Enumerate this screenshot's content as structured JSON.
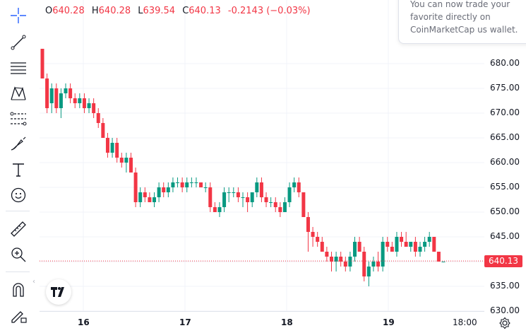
{
  "ohlc": {
    "open_label": "O",
    "open": "640.28",
    "high_label": "H",
    "high": "640.28",
    "low_label": "L",
    "low": "639.54",
    "close_label": "C",
    "close": "640.13",
    "change": "-0.2143 (−0.03%)"
  },
  "toast": {
    "text": "You can now trade your favorite directly on CoinMarketCap us wallet."
  },
  "price_axis": {
    "ticks": [
      "680.00",
      "675.00",
      "670.00",
      "665.00",
      "660.00",
      "655.00",
      "650.00",
      "645.00",
      "640.00",
      "635.00",
      "630.00"
    ],
    "last_price": "640.13"
  },
  "time_axis": {
    "ticks": [
      "16",
      "17",
      "18",
      "19",
      "18:00"
    ]
  },
  "toolbar": {
    "tools": [
      "crosshair-icon",
      "trend-line-icon",
      "horizontal-lines-icon",
      "pattern-icon",
      "fib-icon",
      "brush-icon",
      "text-tool-icon",
      "emoji-icon",
      "ruler-icon",
      "zoom-icon",
      "magnet-icon",
      "lock-pencil-icon"
    ]
  },
  "colors": {
    "up": "#089981",
    "down": "#f23645",
    "grid": "#f0f3fa"
  },
  "chart_data": {
    "type": "candlestick",
    "y_range": [
      630,
      685
    ],
    "last_price": 640.13,
    "candles": [
      [
        683,
        683,
        677,
        677
      ],
      [
        677,
        678,
        670,
        671
      ],
      [
        672,
        676,
        670,
        675
      ],
      [
        675,
        676,
        670,
        671
      ],
      [
        671,
        675,
        669,
        674
      ],
      [
        674,
        676,
        673,
        675
      ],
      [
        675,
        676,
        672,
        673
      ],
      [
        673,
        674,
        671,
        672
      ],
      [
        672,
        674,
        671,
        673
      ],
      [
        673,
        674,
        670,
        671
      ],
      [
        671,
        673,
        670,
        672
      ],
      [
        672,
        673,
        669,
        670
      ],
      [
        670,
        671,
        667,
        668
      ],
      [
        668,
        669,
        665,
        665
      ],
      [
        665,
        666,
        661,
        662
      ],
      [
        662,
        665,
        661,
        664
      ],
      [
        664,
        665,
        660,
        661
      ],
      [
        661,
        662,
        659,
        660
      ],
      [
        660,
        662,
        658,
        661
      ],
      [
        661,
        662,
        658,
        658
      ],
      [
        658,
        659,
        651,
        652
      ],
      [
        652,
        655,
        651,
        654
      ],
      [
        654,
        655,
        652,
        653
      ],
      [
        653,
        654,
        652,
        652
      ],
      [
        652,
        654,
        651,
        653
      ],
      [
        653,
        656,
        652,
        655
      ],
      [
        655,
        656,
        653,
        654
      ],
      [
        654,
        656,
        653,
        655
      ],
      [
        655,
        657,
        654,
        656
      ],
      [
        656,
        657,
        655,
        656
      ],
      [
        656,
        657,
        654,
        655
      ],
      [
        655,
        657,
        654,
        656
      ],
      [
        656,
        657,
        655,
        656
      ],
      [
        656,
        657,
        655,
        656
      ],
      [
        656,
        656,
        655,
        655
      ],
      [
        655,
        656,
        654,
        655
      ],
      [
        655,
        656,
        650,
        651
      ],
      [
        651,
        652,
        650,
        650
      ],
      [
        650,
        652,
        649,
        651
      ],
      [
        651,
        655,
        650,
        654
      ],
      [
        654,
        655,
        652,
        654
      ],
      [
        654,
        655,
        653,
        654
      ],
      [
        654,
        655,
        652,
        653
      ],
      [
        653,
        654,
        651,
        653
      ],
      [
        653,
        654,
        650,
        652
      ],
      [
        652,
        654,
        651,
        654
      ],
      [
        654,
        657,
        653,
        656
      ],
      [
        656,
        657,
        652,
        653
      ],
      [
        653,
        654,
        651,
        652
      ],
      [
        652,
        653,
        651,
        652
      ],
      [
        652,
        653,
        650,
        651
      ],
      [
        651,
        652,
        649,
        650
      ],
      [
        650,
        653,
        650,
        652
      ],
      [
        652,
        656,
        651,
        655
      ],
      [
        655,
        657,
        654,
        656
      ],
      [
        656,
        657,
        653,
        654
      ],
      [
        654,
        654,
        649,
        649
      ],
      [
        649,
        650,
        642,
        646
      ],
      [
        646,
        647,
        643,
        645
      ],
      [
        645,
        646,
        643,
        644
      ],
      [
        644,
        645,
        642,
        642
      ],
      [
        642,
        643,
        640,
        641
      ],
      [
        641,
        642,
        638,
        640
      ],
      [
        640,
        642,
        638,
        641
      ],
      [
        641,
        642,
        639,
        640
      ],
      [
        640,
        641,
        638,
        639
      ],
      [
        639,
        642,
        638,
        641
      ],
      [
        641,
        645,
        640,
        644
      ],
      [
        644,
        645,
        642,
        642
      ],
      [
        642,
        643,
        636,
        637
      ],
      [
        637,
        640,
        635,
        639
      ],
      [
        639,
        641,
        638,
        640
      ],
      [
        640,
        642,
        638,
        639
      ],
      [
        639,
        645,
        638,
        644
      ],
      [
        644,
        645,
        642,
        643
      ],
      [
        643,
        644,
        642,
        642
      ],
      [
        642,
        646,
        641,
        645
      ],
      [
        645,
        646,
        643,
        644
      ],
      [
        644,
        646,
        643,
        643
      ],
      [
        643,
        644,
        642,
        644
      ],
      [
        644,
        645,
        641,
        642
      ],
      [
        642,
        644,
        641,
        643
      ],
      [
        643,
        645,
        642,
        644
      ],
      [
        644,
        646,
        643,
        645
      ],
      [
        645,
        645,
        642,
        642
      ],
      [
        642,
        642,
        640,
        640
      ],
      [
        640,
        640,
        640,
        640
      ]
    ]
  }
}
